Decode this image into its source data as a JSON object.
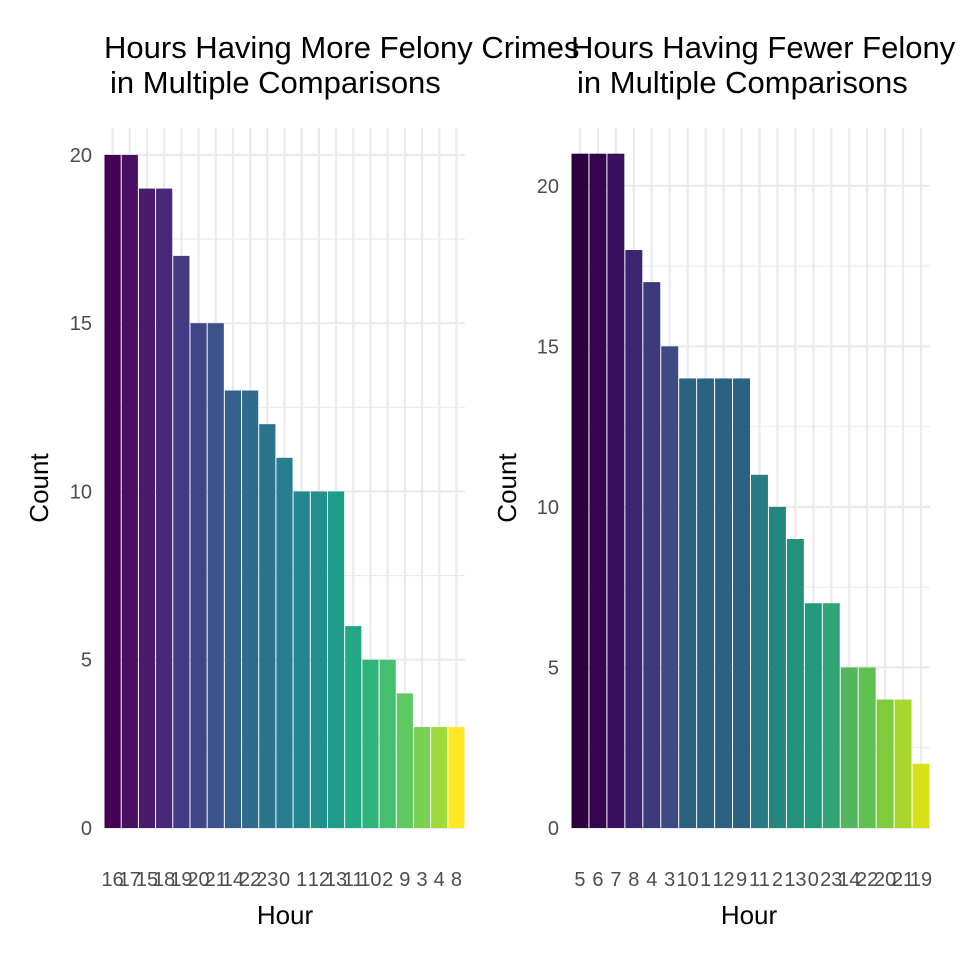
{
  "chart_data": [
    {
      "type": "bar",
      "title": "Hours Having More Felony Crimes\nin Multiple Comparisons",
      "xlabel": "Hour",
      "ylabel": "Count",
      "categories": [
        "16",
        "17",
        "15",
        "18",
        "19",
        "20",
        "21",
        "14",
        "22",
        "23",
        "0",
        "1",
        "12",
        "13",
        "11",
        "10",
        "2",
        "9",
        "3",
        "4",
        "8"
      ],
      "values": [
        20,
        20,
        19,
        19,
        17,
        15,
        15,
        13,
        13,
        12,
        11,
        10,
        10,
        10,
        6,
        5,
        5,
        4,
        3,
        3,
        3
      ],
      "yticks": [
        0,
        5,
        10,
        15,
        20
      ],
      "ylim": [
        0,
        20.8
      ],
      "colors": [
        "#440154",
        "#470E61",
        "#481B6D",
        "#46277A",
        "#443983",
        "#414487",
        "#3B528B",
        "#355F8D",
        "#306A8E",
        "#2C738E",
        "#287D8E",
        "#25858E",
        "#21908C",
        "#1E9C89",
        "#22A884",
        "#2FB47C",
        "#44BF70",
        "#5EC962",
        "#7AD151",
        "#9FDA3A",
        "#FDE725"
      ],
      "legend": "none",
      "grid": true
    },
    {
      "type": "bar",
      "title": "Hours Having Fewer Felony Crimes\nin Multiple Comparisons",
      "xlabel": "Hour",
      "ylabel": "Count",
      "categories": [
        "5",
        "6",
        "7",
        "8",
        "4",
        "3",
        "10",
        "1",
        "12",
        "9",
        "11",
        "2",
        "13",
        "0",
        "23",
        "14",
        "22",
        "20",
        "21",
        "19"
      ],
      "values": [
        21,
        21,
        21,
        18,
        17,
        15,
        14,
        14,
        14,
        14,
        11,
        10,
        9,
        7,
        7,
        5,
        5,
        4,
        4,
        2
      ],
      "yticks": [
        0,
        5,
        10,
        15,
        20
      ],
      "ylim": [
        0,
        21.8
      ],
      "colors": [
        "#2D0140",
        "#35064F",
        "#3A105E",
        "#3B2570",
        "#3D3A7C",
        "#3E4A85",
        "#2B6181",
        "#2B6181",
        "#2B6181",
        "#2B6181",
        "#267B85",
        "#23877F",
        "#22927A",
        "#21997A",
        "#31A474",
        "#55B45E",
        "#5FC150",
        "#7ECB40",
        "#A8D62E",
        "#D9E11A"
      ],
      "legend": "none",
      "grid": true
    }
  ]
}
